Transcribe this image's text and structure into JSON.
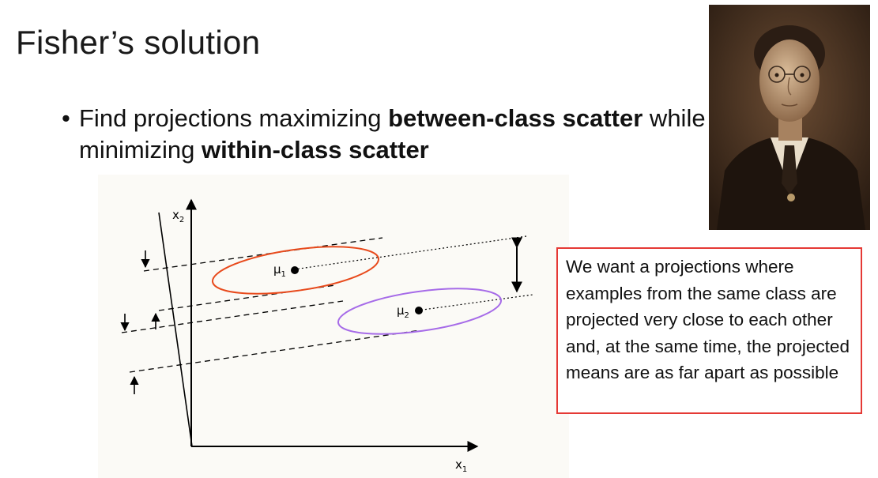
{
  "slide": {
    "title": "Fisher’s solution",
    "bullet_glyph": "•",
    "bullet": {
      "part1": "Find projections maximizing ",
      "bold1": "between-class scatter",
      "part2": " while minimizing ",
      "bold2": "within-class scatter"
    },
    "callout_text": "We want a projections where examples from the same class are projected very close to each other and, at the same time, the projected means are as far apart as possible"
  },
  "figure": {
    "x_axis_label": "x",
    "x_axis_sub": "1",
    "y_axis_label": "x",
    "y_axis_sub": "2",
    "mean1_label": "μ",
    "mean1_sub": "1",
    "mean2_label": "μ",
    "mean2_sub": "2",
    "class1_color": "#e84a1c",
    "class2_color": "#a66be8"
  },
  "colors": {
    "callout_border": "#e53935",
    "portrait_background": "#3b2a1c"
  }
}
